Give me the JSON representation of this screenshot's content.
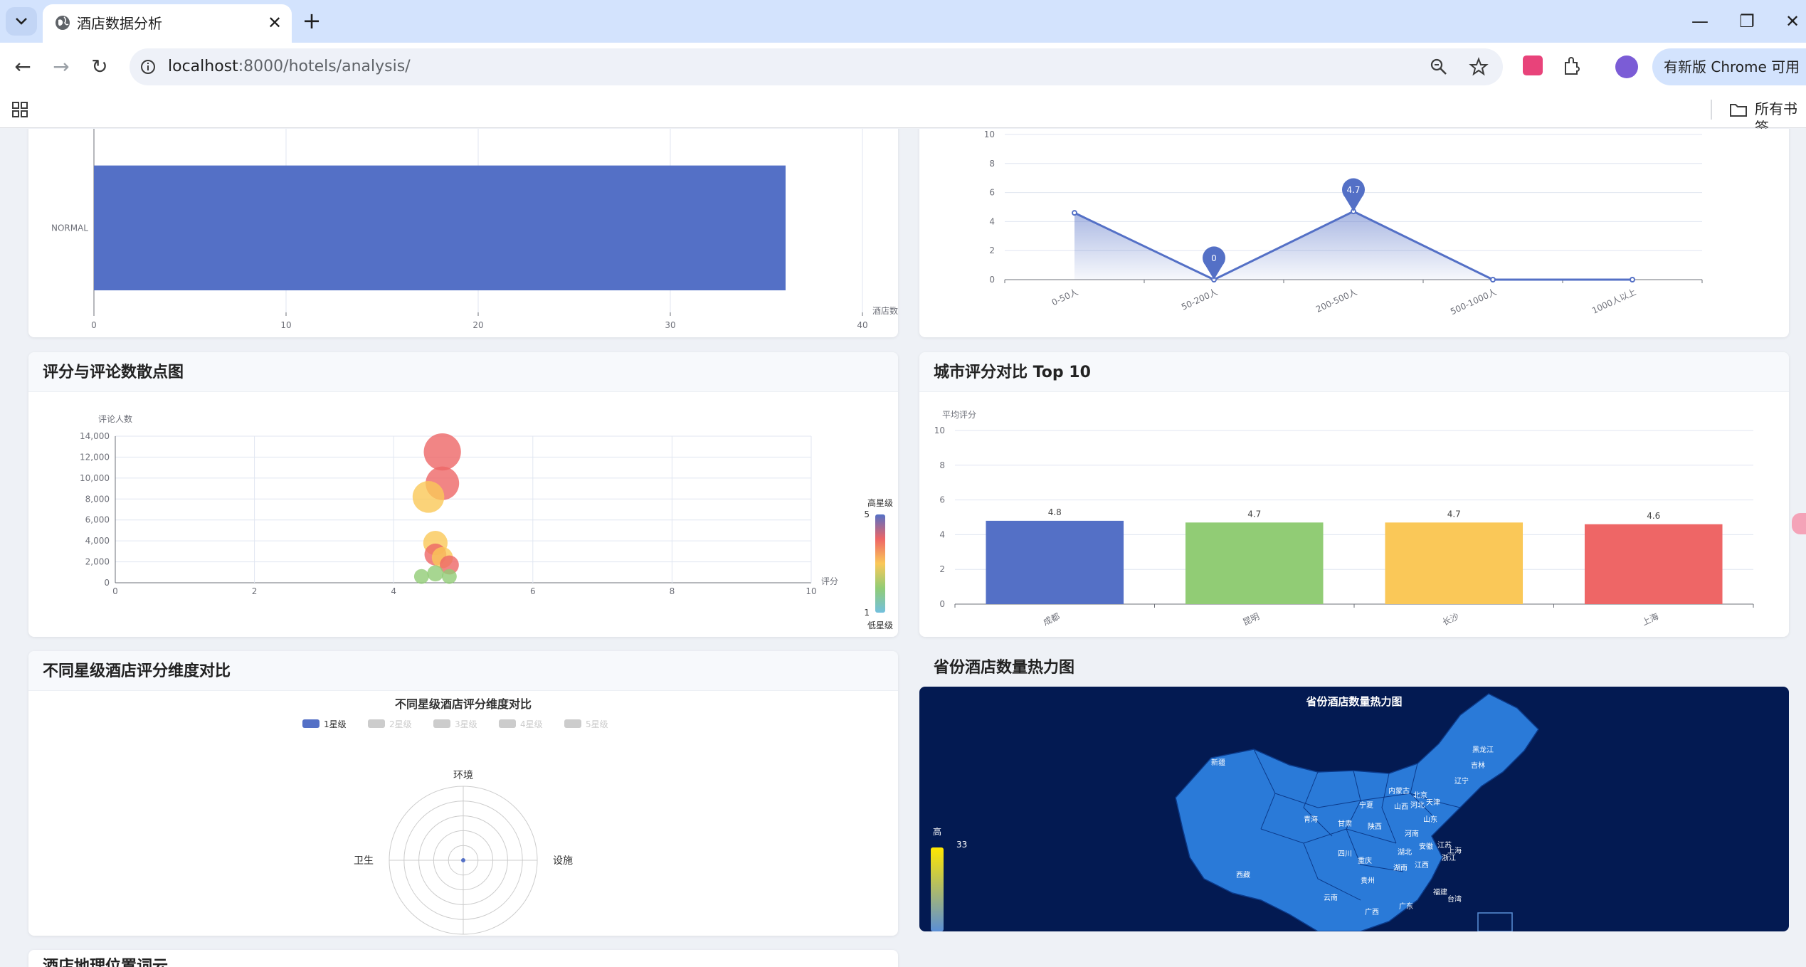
{
  "browser": {
    "tab_title": "酒店数据分析",
    "url_host": "localhost",
    "url_path": ":8000/hotels/analysis/",
    "update_label": "有新版 Chrome 可用",
    "all_bookmarks": "所有书签"
  },
  "cards": {
    "scatter_title": "评分与评论数散点图",
    "city_title": "城市评分对比 Top 10",
    "radar_title": "不同星级酒店评分维度对比",
    "map_title": "省份酒店数量热力图",
    "next_section_title": "酒店地理位置词云"
  },
  "chart_data": [
    {
      "type": "bar",
      "orientation": "horizontal",
      "categories": [
        "NORMAL"
      ],
      "values": [
        36
      ],
      "xlabel": "酒店数",
      "xlim": [
        0,
        40
      ],
      "xticks": [
        "0",
        "10",
        "20",
        "30",
        "40"
      ],
      "color": "#5470c6"
    },
    {
      "type": "area",
      "categories": [
        "0-50人",
        "50-200人",
        "200-500人",
        "500-1000人",
        "1000人以上"
      ],
      "values": [
        4.6,
        0,
        4.7,
        0,
        0
      ],
      "markers": [
        {
          "category": "50-200人",
          "label": "0"
        },
        {
          "category": "200-500人",
          "label": "4.7"
        }
      ],
      "ylim": [
        0,
        10
      ],
      "yticks": [
        "0",
        "2",
        "4",
        "6",
        "8",
        "10"
      ],
      "color": "#5470c6"
    },
    {
      "type": "scatter",
      "xlabel": "评分",
      "ylabel": "评论人数",
      "xlim": [
        0,
        10
      ],
      "ylim": [
        0,
        14000
      ],
      "xticks": [
        "0",
        "2",
        "4",
        "6",
        "8",
        "10"
      ],
      "yticks": [
        "0",
        "2,000",
        "4,000",
        "6,000",
        "8,000",
        "10,000",
        "12,000",
        "14,000"
      ],
      "points": [
        {
          "x": 4.7,
          "y": 12500,
          "star": 5
        },
        {
          "x": 4.7,
          "y": 9500,
          "star": 5
        },
        {
          "x": 4.5,
          "y": 8200,
          "star": 4
        },
        {
          "x": 4.6,
          "y": 3800,
          "star": 4
        },
        {
          "x": 4.6,
          "y": 2700,
          "star": 5
        },
        {
          "x": 4.7,
          "y": 2400,
          "star": 4
        },
        {
          "x": 4.8,
          "y": 1700,
          "star": 5
        },
        {
          "x": 4.6,
          "y": 900,
          "star": 2
        },
        {
          "x": 4.4,
          "y": 600,
          "star": 2
        },
        {
          "x": 4.8,
          "y": 600,
          "star": 2
        }
      ],
      "visual_map": {
        "min": "1",
        "max": "5",
        "max_label": "高星级",
        "min_label": "低星级"
      }
    },
    {
      "type": "bar",
      "ylabel": "平均评分",
      "ylim": [
        0,
        10
      ],
      "yticks": [
        "0",
        "2",
        "4",
        "6",
        "8",
        "10"
      ],
      "categories": [
        "成都",
        "昆明",
        "长沙",
        "上海"
      ],
      "values": [
        4.8,
        4.7,
        4.7,
        4.6
      ],
      "labels": [
        "4.8",
        "4.7",
        "4.7",
        "4.6"
      ],
      "colors": [
        "#5470c6",
        "#91cc75",
        "#fac858",
        "#ee6666"
      ]
    },
    {
      "type": "radar",
      "title": "不同星级酒店评分维度对比",
      "legend": [
        "1星级",
        "2星级",
        "3星级",
        "4星级",
        "5星级"
      ],
      "indicators": [
        "环境",
        "设施",
        "卫生"
      ],
      "legend_color": "#5470c6"
    },
    {
      "type": "heatmap",
      "title": "省份酒店数量热力图",
      "visual_map": {
        "max": "33",
        "max_label": "高"
      },
      "regions": [
        "新疆",
        "西藏",
        "青海",
        "甘肃",
        "宁夏",
        "内蒙古",
        "黑龙江",
        "吉林",
        "辽宁",
        "北京",
        "天津",
        "河北",
        "山西",
        "山东",
        "陕西",
        "河南",
        "江苏",
        "安徽",
        "上海",
        "浙江",
        "湖北",
        "四川",
        "重庆",
        "湖南",
        "江西",
        "贵州",
        "云南",
        "广西",
        "广东",
        "福建",
        "台湾"
      ]
    }
  ]
}
